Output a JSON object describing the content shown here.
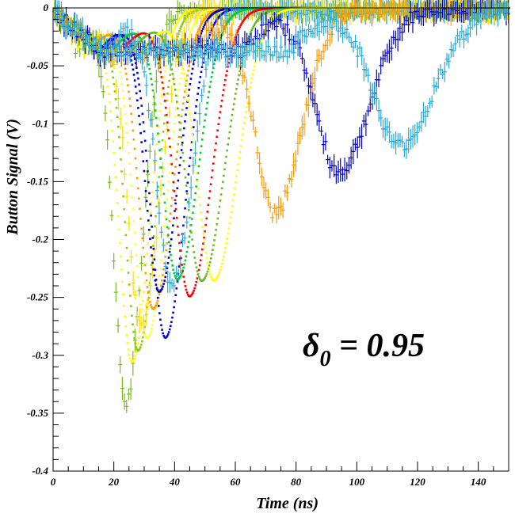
{
  "chart_data": {
    "type": "scatter",
    "title": "",
    "xlabel": "Time (ns)",
    "ylabel": "Button Signal (V)",
    "xlim": [
      0,
      150
    ],
    "ylim": [
      -0.4,
      0
    ],
    "x_ticks": [
      0,
      20,
      40,
      60,
      80,
      100,
      120,
      140
    ],
    "x_tick_labels": [
      "0",
      "20",
      "40",
      "60",
      "80",
      "100",
      "120",
      "140"
    ],
    "y_ticks": [
      0,
      -0.05,
      -0.1,
      -0.15,
      -0.2,
      -0.25,
      -0.3,
      -0.35,
      -0.4
    ],
    "y_tick_labels": [
      "0",
      "-0.05",
      "-0.1",
      "-0.15",
      "-0.2",
      "-0.25",
      "-0.3",
      "-0.35",
      "-0.4"
    ],
    "annotation": {
      "symbol": "δ",
      "subscript": "0",
      "text": " = 0.95"
    },
    "grid": false,
    "series": [
      {
        "color": "#77bb22",
        "peak_x": 24,
        "peak_y": -0.335,
        "width": 4.0,
        "errors": true
      },
      {
        "color": "#ffff00",
        "peak_x": 26,
        "peak_y": -0.3,
        "width": 4.3,
        "errors": false
      },
      {
        "color": "#88cc00",
        "peak_x": 28,
        "peak_y": -0.29,
        "width": 4.3,
        "errors": false
      },
      {
        "color": "#ffdd00",
        "peak_x": 29,
        "peak_y": -0.27,
        "width": 4.5,
        "errors": true
      },
      {
        "color": "#ffff33",
        "peak_x": 31,
        "peak_y": -0.28,
        "width": 4.6,
        "errors": false
      },
      {
        "color": "#ff9900",
        "peak_x": 33,
        "peak_y": -0.255,
        "width": 4.8,
        "errors": false
      },
      {
        "color": "#0000cc",
        "peak_x": 35,
        "peak_y": -0.24,
        "width": 4.6,
        "errors": false
      },
      {
        "color": "#0000ee",
        "peak_x": 37,
        "peak_y": -0.28,
        "width": 4.8,
        "errors": false
      },
      {
        "color": "#33aadd",
        "peak_x": 39,
        "peak_y": -0.235,
        "width": 5.0,
        "errors": true
      },
      {
        "color": "#00cc33",
        "peak_x": 41,
        "peak_y": -0.23,
        "width": 5.0,
        "errors": false
      },
      {
        "color": "#ff0000",
        "peak_x": 45,
        "peak_y": -0.245,
        "width": 5.2,
        "errors": false
      },
      {
        "color": "#66bb22",
        "peak_x": 49,
        "peak_y": -0.232,
        "width": 5.4,
        "errors": false
      },
      {
        "color": "#ffff00",
        "peak_x": 53,
        "peak_y": -0.232,
        "width": 5.6,
        "errors": false
      },
      {
        "color": "#ff9900",
        "peak_x": 73,
        "peak_y": -0.175,
        "width": 6.5,
        "errors": true
      },
      {
        "color": "#0000cc",
        "peak_x": 94,
        "peak_y": -0.14,
        "width": 7.5,
        "errors": true
      },
      {
        "color": "#22aadd",
        "peak_x": 114,
        "peak_y": -0.118,
        "width": 8.5,
        "errors": true
      }
    ]
  }
}
